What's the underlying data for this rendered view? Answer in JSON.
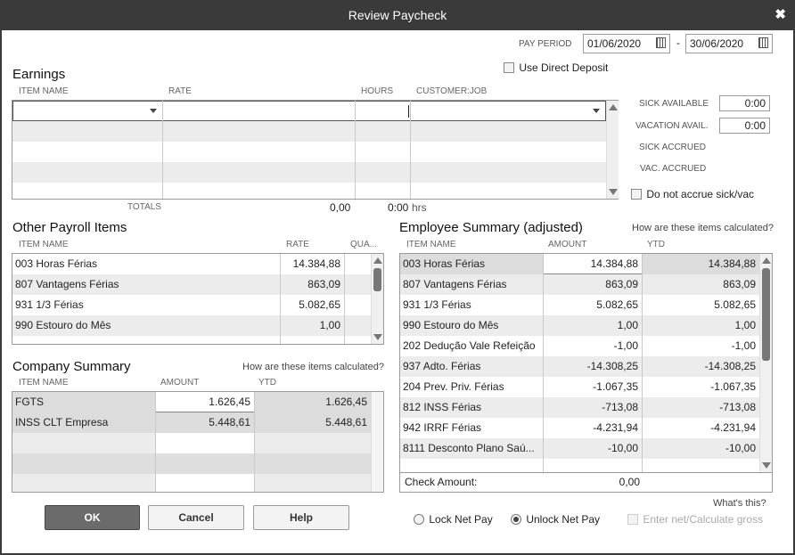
{
  "window": {
    "title": "Review Paycheck",
    "close": "✖"
  },
  "pay_period": {
    "label": "PAY PERIOD",
    "from": "01/06/2020",
    "sep": "-",
    "to": "30/06/2020"
  },
  "direct_deposit": {
    "label": "Use Direct Deposit"
  },
  "earnings": {
    "title": "Earnings",
    "headers": {
      "item": "ITEM NAME",
      "rate": "RATE",
      "hours": "HOURS",
      "customer": "CUSTOMER:JOB"
    },
    "totals_label": "TOTALS",
    "total_rate": "0,00",
    "total_hours": "0:00",
    "hrs": "hrs"
  },
  "sick": {
    "sick_available_label": "SICK AVAILABLE",
    "sick_available": "0:00",
    "vacation_avail_label": "VACATION AVAIL.",
    "vacation_avail": "0:00",
    "sick_accrued_label": "SICK ACCRUED",
    "vac_accrued_label": "VAC. ACCRUED",
    "no_accrue_label": "Do not accrue sick/vac"
  },
  "other_payroll": {
    "title": "Other Payroll Items",
    "headers": {
      "item": "ITEM NAME",
      "rate": "RATE",
      "qty": "QUA..."
    },
    "rows": [
      {
        "name": "003 Horas Férias",
        "rate": "14.384,88"
      },
      {
        "name": "807 Vantagens Férias",
        "rate": "863,09"
      },
      {
        "name": "931 1/3 Férias",
        "rate": "5.082,65"
      },
      {
        "name": "990 Estouro do Mês",
        "rate": "1,00"
      }
    ]
  },
  "company_summary": {
    "title": "Company Summary",
    "how_link": "How are these items calculated?",
    "headers": {
      "item": "ITEM NAME",
      "amount": "AMOUNT",
      "ytd": "YTD"
    },
    "rows": [
      {
        "name": "FGTS",
        "amount": "1.626,45",
        "ytd": "1.626,45"
      },
      {
        "name": "INSS CLT Empresa",
        "amount": "5.448,61",
        "ytd": "5.448,61"
      }
    ]
  },
  "employee_summary": {
    "title": "Employee Summary (adjusted)",
    "how_link": "How are these items calculated?",
    "headers": {
      "item": "ITEM NAME",
      "amount": "AMOUNT",
      "ytd": "YTD"
    },
    "rows": [
      {
        "name": "003 Horas Férias",
        "amount": "14.384,88",
        "ytd": "14.384,88"
      },
      {
        "name": "807 Vantagens Férias",
        "amount": "863,09",
        "ytd": "863,09"
      },
      {
        "name": "931 1/3 Férias",
        "amount": "5.082,65",
        "ytd": "5.082,65"
      },
      {
        "name": "990 Estouro do Mês",
        "amount": "1,00",
        "ytd": "1,00"
      },
      {
        "name": "202 Dedução Vale Refeição",
        "amount": "-1,00",
        "ytd": "-1,00"
      },
      {
        "name": "937 Adto. Férias",
        "amount": "-14.308,25",
        "ytd": "-14.308,25"
      },
      {
        "name": "204 Prev. Priv. Férias",
        "amount": "-1.067,35",
        "ytd": "-1.067,35"
      },
      {
        "name": "812 INSS Férias",
        "amount": "-713,08",
        "ytd": "-713,08"
      },
      {
        "name": "942 IRRF Férias",
        "amount": "-4.231,94",
        "ytd": "-4.231,94"
      },
      {
        "name": "8111 Desconto Plano Saú...",
        "amount": "-10,00",
        "ytd": "-10,00"
      }
    ],
    "check_amount_label": "Check Amount:",
    "check_amount": "0,00"
  },
  "buttons": {
    "ok": "OK",
    "cancel": "Cancel",
    "help": "Help"
  },
  "net_pay": {
    "whats_this": "What's this?",
    "lock": "Lock Net Pay",
    "unlock": "Unlock Net Pay",
    "enter_net": "Enter net/Calculate gross"
  }
}
